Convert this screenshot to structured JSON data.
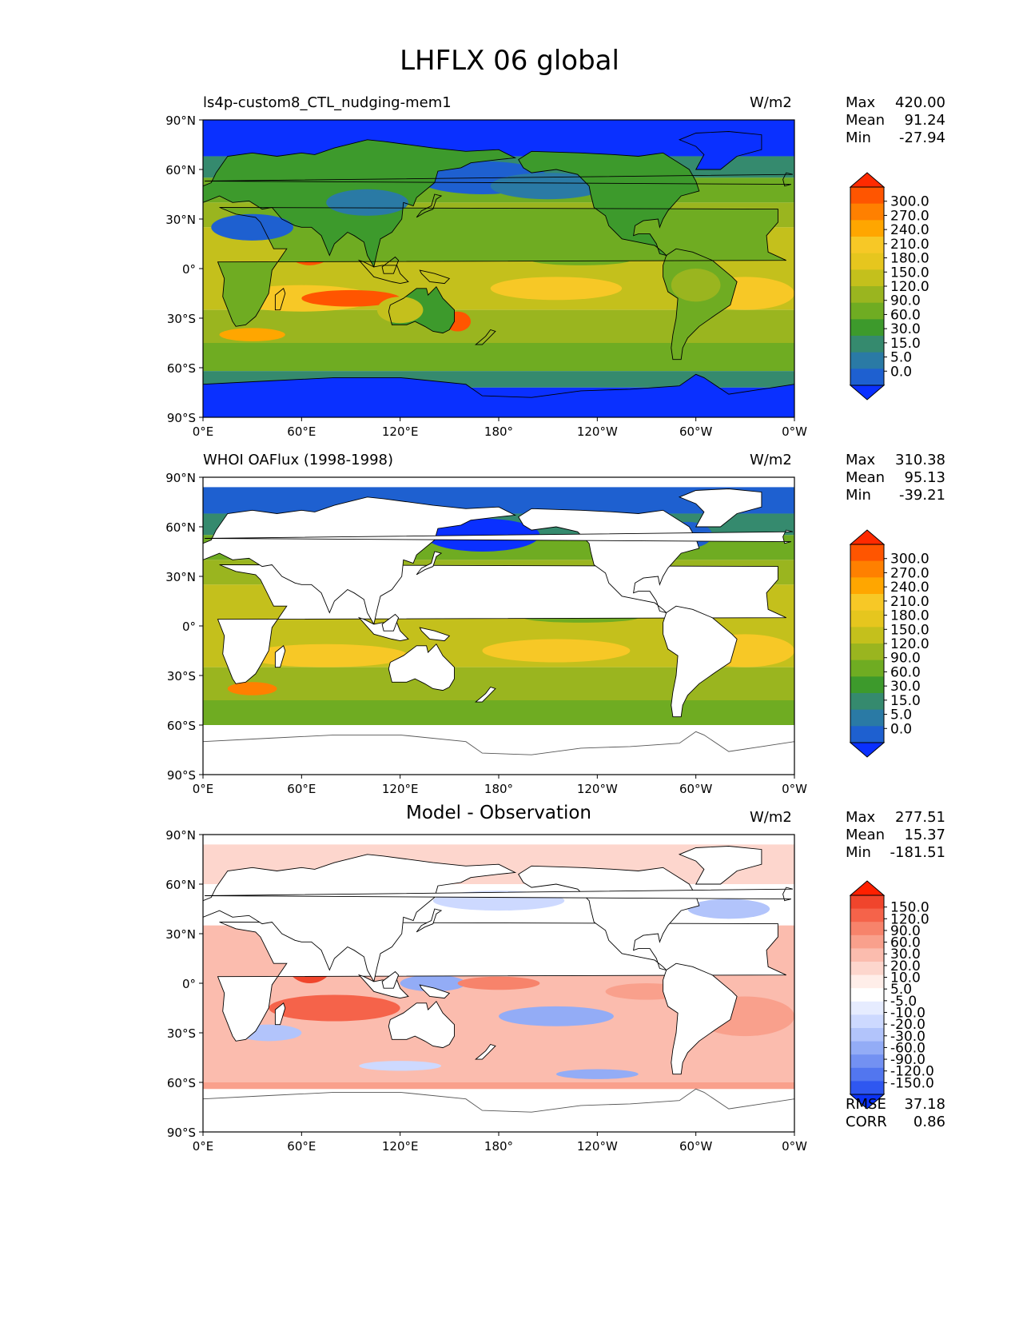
{
  "figure": {
    "title": "LHFLX 06 global"
  },
  "axes": {
    "y_ticks": [
      "90°N",
      "60°N",
      "30°N",
      "0°",
      "30°S",
      "60°S",
      "90°S"
    ],
    "x_ticks": [
      "0°E",
      "60°E",
      "120°E",
      "180°",
      "120°W",
      "60°W",
      "0°W"
    ]
  },
  "panels": [
    {
      "id": "model",
      "title": "ls4p-custom8_CTL_nudging-mem1",
      "units": "W/m2",
      "stats": {
        "max_label": "Max",
        "max": "420.00",
        "mean_label": "Mean",
        "mean": "91.24",
        "min_label": "Min",
        "min": "-27.94"
      },
      "colorbar": {
        "labels": [
          "300.0",
          "270.0",
          "240.0",
          "210.0",
          "180.0",
          "150.0",
          "120.0",
          "90.0",
          "60.0",
          "30.0",
          "15.0",
          "5.0",
          "0.0"
        ],
        "colors": [
          "#ff2a00",
          "#ff5500",
          "#ff8000",
          "#ffa600",
          "#f7c826",
          "#e6c61e",
          "#c4c01c",
          "#9ab51f",
          "#6fac22",
          "#3d9a2c",
          "#358a6e",
          "#2a7aa5",
          "#1e60d0",
          "#0a30ff"
        ]
      }
    },
    {
      "id": "obs",
      "title": "WHOI OAFlux (1998-1998)",
      "units": "W/m2",
      "stats": {
        "max_label": "Max",
        "max": "310.38",
        "mean_label": "Mean",
        "mean": "95.13",
        "min_label": "Min",
        "min": "-39.21"
      },
      "colorbar": {
        "labels": [
          "300.0",
          "270.0",
          "240.0",
          "210.0",
          "180.0",
          "150.0",
          "120.0",
          "90.0",
          "60.0",
          "30.0",
          "15.0",
          "5.0",
          "0.0"
        ],
        "colors": [
          "#ff2a00",
          "#ff5500",
          "#ff8000",
          "#ffa600",
          "#f7c826",
          "#e6c61e",
          "#c4c01c",
          "#9ab51f",
          "#6fac22",
          "#3d9a2c",
          "#358a6e",
          "#2a7aa5",
          "#1e60d0",
          "#0a30ff"
        ]
      }
    },
    {
      "id": "diff",
      "title": "Model - Observation",
      "units": "W/m2",
      "stats": {
        "max_label": "Max",
        "max": "277.51",
        "mean_label": "Mean",
        "mean": "15.37",
        "min_label": "Min",
        "min": "-181.51"
      },
      "colorbar": {
        "labels": [
          "150.0",
          "120.0",
          "90.0",
          "60.0",
          "30.0",
          "20.0",
          "10.0",
          "5.0",
          "-5.0",
          "-10.0",
          "-20.0",
          "-30.0",
          "-60.0",
          "-90.0",
          "-120.0",
          "-150.0"
        ],
        "colors": [
          "#ff2000",
          "#f0452c",
          "#f5634a",
          "#f7836b",
          "#f9a08c",
          "#fbbcae",
          "#fdd6cd",
          "#ffeee9",
          "#ffffff",
          "#e6ecff",
          "#cdd9ff",
          "#b2c4fb",
          "#93acf6",
          "#7391f2",
          "#5276ef",
          "#2f57f0",
          "#0b32f5"
        ]
      },
      "extra": {
        "rmse_label": "RMSE",
        "rmse": "37.18",
        "corr_label": "CORR",
        "corr": "0.86"
      }
    }
  ]
}
